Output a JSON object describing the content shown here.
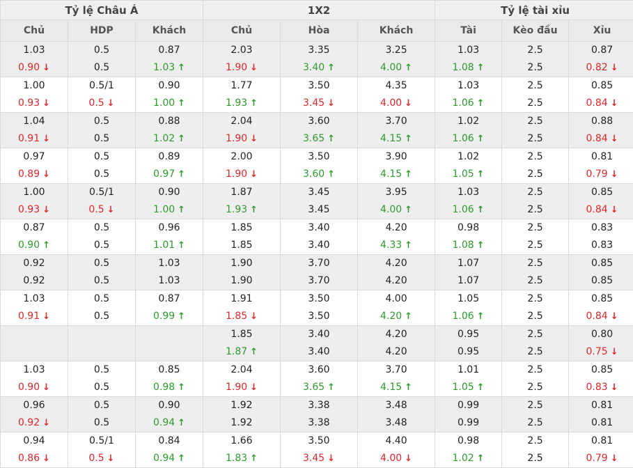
{
  "header": {
    "groups": [
      "Tỷ lệ Châu Á",
      "1X2",
      "Tỷ lệ tài xỉu"
    ],
    "columns": [
      "Chủ",
      "HDP",
      "Khách",
      "Chủ",
      "Hòa",
      "Khách",
      "Tài",
      "Kèo đầu",
      "Xỉu"
    ]
  },
  "colors": {
    "up": "#2e9a2e",
    "down": "#e0262a",
    "neutral": "#222222"
  },
  "icons": {
    "up": "arrow-up-icon",
    "down": "arrow-down-icon"
  },
  "rows": [
    [
      [
        "1.03",
        "0.90",
        "d"
      ],
      [
        "0.5",
        "0.5",
        ""
      ],
      [
        "0.87",
        "1.03",
        "u"
      ],
      [
        "2.03",
        "1.90",
        "d"
      ],
      [
        "3.35",
        "3.40",
        "u"
      ],
      [
        "3.25",
        "4.00",
        "u"
      ],
      [
        "1.03",
        "1.08",
        "u"
      ],
      [
        "2.5",
        "2.5",
        ""
      ],
      [
        "0.87",
        "0.82",
        "d"
      ]
    ],
    [
      [
        "1.00",
        "0.93",
        "d"
      ],
      [
        "0.5/1",
        "0.5",
        "d"
      ],
      [
        "0.90",
        "1.00",
        "u"
      ],
      [
        "1.77",
        "1.93",
        "u"
      ],
      [
        "3.50",
        "3.45",
        "d"
      ],
      [
        "4.35",
        "4.00",
        "d"
      ],
      [
        "1.03",
        "1.06",
        "u"
      ],
      [
        "2.5",
        "2.5",
        ""
      ],
      [
        "0.85",
        "0.84",
        "d"
      ]
    ],
    [
      [
        "1.04",
        "0.91",
        "d"
      ],
      [
        "0.5",
        "0.5",
        ""
      ],
      [
        "0.88",
        "1.02",
        "u"
      ],
      [
        "2.04",
        "1.90",
        "d"
      ],
      [
        "3.60",
        "3.65",
        "u"
      ],
      [
        "3.70",
        "4.15",
        "u"
      ],
      [
        "1.02",
        "1.06",
        "u"
      ],
      [
        "2.5",
        "2.5",
        ""
      ],
      [
        "0.88",
        "0.84",
        "d"
      ]
    ],
    [
      [
        "0.97",
        "0.89",
        "d"
      ],
      [
        "0.5",
        "0.5",
        ""
      ],
      [
        "0.89",
        "0.97",
        "u"
      ],
      [
        "2.00",
        "1.90",
        "d"
      ],
      [
        "3.50",
        "3.60",
        "u"
      ],
      [
        "3.90",
        "4.15",
        "u"
      ],
      [
        "1.02",
        "1.05",
        "u"
      ],
      [
        "2.5",
        "2.5",
        ""
      ],
      [
        "0.81",
        "0.79",
        "d"
      ]
    ],
    [
      [
        "1.00",
        "0.93",
        "d"
      ],
      [
        "0.5/1",
        "0.5",
        "d"
      ],
      [
        "0.90",
        "1.00",
        "u"
      ],
      [
        "1.87",
        "1.93",
        "u"
      ],
      [
        "3.45",
        "3.45",
        ""
      ],
      [
        "3.95",
        "4.00",
        "u"
      ],
      [
        "1.03",
        "1.06",
        "u"
      ],
      [
        "2.5",
        "2.5",
        ""
      ],
      [
        "0.85",
        "0.84",
        "d"
      ]
    ],
    [
      [
        "0.87",
        "0.90",
        "u"
      ],
      [
        "0.5",
        "0.5",
        ""
      ],
      [
        "0.96",
        "1.01",
        "u"
      ],
      [
        "1.85",
        "1.85",
        ""
      ],
      [
        "3.40",
        "3.40",
        ""
      ],
      [
        "4.20",
        "4.33",
        "u"
      ],
      [
        "0.98",
        "1.08",
        "u"
      ],
      [
        "2.5",
        "2.5",
        ""
      ],
      [
        "0.83",
        "0.83",
        ""
      ]
    ],
    [
      [
        "0.92",
        "0.92",
        ""
      ],
      [
        "0.5",
        "0.5",
        ""
      ],
      [
        "1.03",
        "1.03",
        ""
      ],
      [
        "1.90",
        "1.90",
        ""
      ],
      [
        "3.70",
        "3.70",
        ""
      ],
      [
        "4.20",
        "4.20",
        ""
      ],
      [
        "1.07",
        "1.07",
        ""
      ],
      [
        "2.5",
        "2.5",
        ""
      ],
      [
        "0.85",
        "0.85",
        ""
      ]
    ],
    [
      [
        "1.03",
        "0.91",
        "d"
      ],
      [
        "0.5",
        "0.5",
        ""
      ],
      [
        "0.87",
        "0.99",
        "u"
      ],
      [
        "1.91",
        "1.85",
        "d"
      ],
      [
        "3.50",
        "3.50",
        ""
      ],
      [
        "4.00",
        "4.20",
        "u"
      ],
      [
        "1.05",
        "1.06",
        "u"
      ],
      [
        "2.5",
        "2.5",
        ""
      ],
      [
        "0.85",
        "0.84",
        "d"
      ]
    ],
    [
      [
        "",
        "",
        ""
      ],
      [
        "",
        "",
        ""
      ],
      [
        "",
        "",
        ""
      ],
      [
        "1.85",
        "1.87",
        "u"
      ],
      [
        "3.40",
        "3.40",
        ""
      ],
      [
        "4.20",
        "4.20",
        ""
      ],
      [
        "0.95",
        "0.95",
        ""
      ],
      [
        "2.5",
        "2.5",
        ""
      ],
      [
        "0.80",
        "0.75",
        "d"
      ]
    ],
    [
      [
        "1.03",
        "0.90",
        "d"
      ],
      [
        "0.5",
        "0.5",
        ""
      ],
      [
        "0.85",
        "0.98",
        "u"
      ],
      [
        "2.04",
        "1.90",
        "d"
      ],
      [
        "3.60",
        "3.65",
        "u"
      ],
      [
        "3.70",
        "4.15",
        "u"
      ],
      [
        "1.01",
        "1.05",
        "u"
      ],
      [
        "2.5",
        "2.5",
        ""
      ],
      [
        "0.85",
        "0.83",
        "d"
      ]
    ],
    [
      [
        "0.96",
        "0.92",
        "d"
      ],
      [
        "0.5",
        "0.5",
        ""
      ],
      [
        "0.90",
        "0.94",
        "u"
      ],
      [
        "1.92",
        "1.92",
        ""
      ],
      [
        "3.38",
        "3.38",
        ""
      ],
      [
        "3.48",
        "3.48",
        ""
      ],
      [
        "0.99",
        "0.99",
        ""
      ],
      [
        "2.5",
        "2.5",
        ""
      ],
      [
        "0.81",
        "0.81",
        ""
      ]
    ],
    [
      [
        "0.94",
        "0.86",
        "d"
      ],
      [
        "0.5/1",
        "0.5",
        "d"
      ],
      [
        "0.84",
        "0.94",
        "u"
      ],
      [
        "1.66",
        "1.83",
        "u"
      ],
      [
        "3.50",
        "3.45",
        "d"
      ],
      [
        "4.40",
        "4.00",
        "d"
      ],
      [
        "0.98",
        "1.02",
        "u"
      ],
      [
        "2.5",
        "2.5",
        ""
      ],
      [
        "0.81",
        "0.79",
        "d"
      ]
    ]
  ]
}
